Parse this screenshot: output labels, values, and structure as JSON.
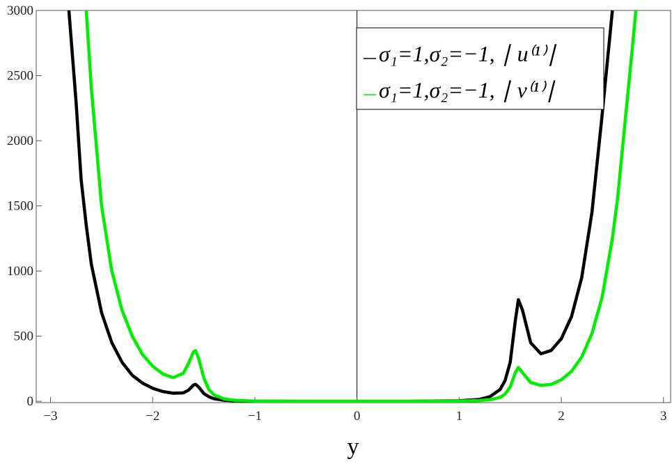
{
  "chart_data": {
    "type": "line",
    "x_label": "y",
    "x": [
      -2.82,
      -2.75,
      -2.7,
      -2.65,
      -2.6,
      -2.5,
      -2.4,
      -2.3,
      -2.2,
      -2.1,
      -2.0,
      -1.9,
      -1.8,
      -1.7,
      -1.65,
      -1.6,
      -1.58,
      -1.55,
      -1.5,
      -1.45,
      -1.4,
      -1.3,
      -1.2,
      -1.0,
      -0.5,
      0,
      0.5,
      1.0,
      1.2,
      1.3,
      1.4,
      1.45,
      1.5,
      1.55,
      1.58,
      1.62,
      1.7,
      1.8,
      1.9,
      2.0,
      2.1,
      2.2,
      2.3,
      2.4,
      2.5,
      2.55,
      2.6,
      2.65,
      2.7,
      2.73
    ],
    "series": [
      {
        "name": "σ₁=1,σ₂=−1, ∣ u⁽¹⁾∣",
        "color": "#000000",
        "values": [
          3000,
          2300,
          1700,
          1350,
          1050,
          680,
          450,
          300,
          200,
          140,
          100,
          75,
          62,
          65,
          85,
          125,
          130,
          110,
          60,
          35,
          20,
          8,
          4,
          1,
          0,
          0,
          0,
          4,
          15,
          35,
          90,
          160,
          300,
          620,
          780,
          700,
          450,
          365,
          390,
          480,
          650,
          950,
          1450,
          2200,
          3000,
          null,
          null,
          null,
          null,
          null
        ]
      },
      {
        "name": "σ₁=1,σ₂=−1, ∣ v⁽¹⁾∣",
        "color": "#00ee00",
        "values": [
          null,
          null,
          null,
          3000,
          2400,
          1500,
          1000,
          700,
          500,
          360,
          270,
          210,
          182,
          215,
          290,
          380,
          390,
          330,
          180,
          90,
          50,
          18,
          8,
          2,
          0,
          0,
          0,
          2,
          6,
          12,
          30,
          55,
          110,
          220,
          260,
          220,
          145,
          122,
          130,
          165,
          230,
          340,
          520,
          800,
          1250,
          1550,
          1950,
          2350,
          2750,
          3000
        ]
      }
    ],
    "xlim": [
      -3.14,
      3.07
    ],
    "ylim": [
      -10,
      3000
    ],
    "xticks": [
      {
        "value": -3,
        "label": "−3"
      },
      {
        "value": -2,
        "label": "−2"
      },
      {
        "value": -1,
        "label": "−1"
      },
      0,
      1,
      2,
      3
    ],
    "yticks": [
      0,
      500,
      1000,
      1500,
      2000,
      2500,
      3000
    ],
    "legend": "top-right"
  }
}
